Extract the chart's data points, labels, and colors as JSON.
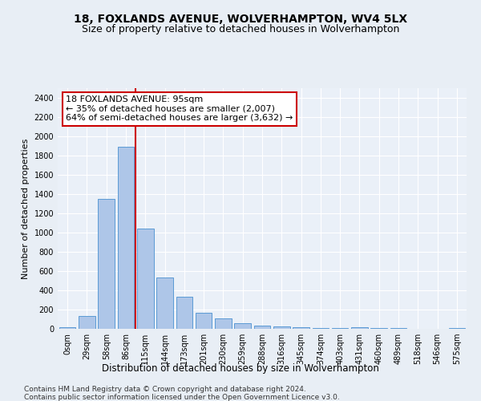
{
  "title1": "18, FOXLANDS AVENUE, WOLVERHAMPTON, WV4 5LX",
  "title2": "Size of property relative to detached houses in Wolverhampton",
  "xlabel": "Distribution of detached houses by size in Wolverhampton",
  "ylabel": "Number of detached properties",
  "categories": [
    "0sqm",
    "29sqm",
    "58sqm",
    "86sqm",
    "115sqm",
    "144sqm",
    "173sqm",
    "201sqm",
    "230sqm",
    "259sqm",
    "288sqm",
    "316sqm",
    "345sqm",
    "374sqm",
    "403sqm",
    "431sqm",
    "460sqm",
    "489sqm",
    "518sqm",
    "546sqm",
    "575sqm"
  ],
  "values": [
    15,
    130,
    1350,
    1890,
    1040,
    535,
    335,
    165,
    110,
    60,
    35,
    25,
    15,
    10,
    5,
    20,
    5,
    5,
    3,
    3,
    10
  ],
  "bar_color": "#aec6e8",
  "bar_edge_color": "#5b9bd5",
  "vline_color": "#cc0000",
  "annotation_text": "18 FOXLANDS AVENUE: 95sqm\n← 35% of detached houses are smaller (2,007)\n64% of semi-detached houses are larger (3,632) →",
  "annotation_box_color": "#ffffff",
  "annotation_box_edge": "#cc0000",
  "ylim": [
    0,
    2500
  ],
  "yticks": [
    0,
    200,
    400,
    600,
    800,
    1000,
    1200,
    1400,
    1600,
    1800,
    2000,
    2200,
    2400
  ],
  "footer1": "Contains HM Land Registry data © Crown copyright and database right 2024.",
  "footer2": "Contains public sector information licensed under the Open Government Licence v3.0.",
  "bg_color": "#e8eef5",
  "plot_bg_color": "#eaf0f8",
  "title1_fontsize": 10,
  "title2_fontsize": 9,
  "xlabel_fontsize": 8.5,
  "ylabel_fontsize": 8,
  "tick_fontsize": 7,
  "annotation_fontsize": 8,
  "footer_fontsize": 6.5
}
